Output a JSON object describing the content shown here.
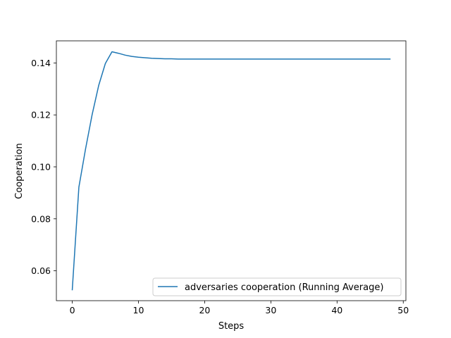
{
  "chart_data": {
    "type": "line",
    "title": "",
    "xlabel": "Steps",
    "ylabel": "Cooperation",
    "xlim": [
      -2.4,
      50.4
    ],
    "ylim": [
      0.0485,
      0.1485
    ],
    "x_ticks": [
      0,
      10,
      20,
      30,
      40,
      50
    ],
    "x_tick_labels": [
      "0",
      "10",
      "20",
      "30",
      "40",
      "50"
    ],
    "y_ticks": [
      0.06,
      0.08,
      0.1,
      0.12,
      0.14
    ],
    "y_tick_labels": [
      "0.06",
      "0.08",
      "0.10",
      "0.12",
      "0.14"
    ],
    "grid": false,
    "legend_position": "lower right",
    "series": [
      {
        "name": "adversaries cooperation (Running Average)",
        "color": "#1f77b4",
        "x": [
          0,
          1,
          2,
          3,
          4,
          5,
          6,
          7,
          8,
          9,
          10,
          11,
          12,
          13,
          14,
          15,
          16,
          17,
          18,
          19,
          20,
          21,
          22,
          23,
          24,
          25,
          26,
          27,
          28,
          29,
          30,
          31,
          32,
          33,
          34,
          35,
          36,
          37,
          38,
          39,
          40,
          41,
          42,
          43,
          44,
          45,
          46,
          47,
          48
        ],
        "y": [
          0.0527,
          0.0922,
          0.1068,
          0.1201,
          0.1314,
          0.1398,
          0.1443,
          0.1437,
          0.143,
          0.1425,
          0.1422,
          0.142,
          0.1418,
          0.1417,
          0.1416,
          0.1416,
          0.1415,
          0.1415,
          0.1415,
          0.1415,
          0.1415,
          0.1415,
          0.1415,
          0.1415,
          0.1415,
          0.1415,
          0.1415,
          0.1415,
          0.1415,
          0.1415,
          0.1415,
          0.1415,
          0.1415,
          0.1415,
          0.1415,
          0.1415,
          0.1415,
          0.1415,
          0.1415,
          0.1415,
          0.1415,
          0.1415,
          0.1415,
          0.1415,
          0.1415,
          0.1415,
          0.1415,
          0.1415,
          0.1415
        ]
      }
    ]
  }
}
